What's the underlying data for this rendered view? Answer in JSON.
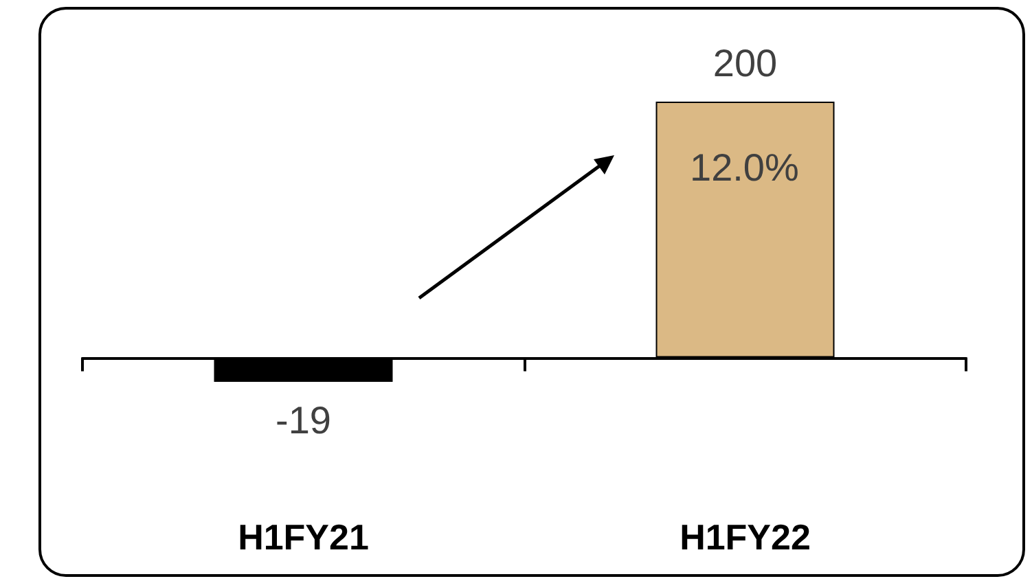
{
  "chart_data": {
    "type": "bar",
    "categories": [
      "H1FY21",
      "H1FY22"
    ],
    "values": [
      -19,
      200
    ],
    "colors": [
      "#000000",
      "#dbb985"
    ],
    "data_labels": true,
    "grid": false,
    "annotations": [
      "12.0%"
    ]
  }
}
